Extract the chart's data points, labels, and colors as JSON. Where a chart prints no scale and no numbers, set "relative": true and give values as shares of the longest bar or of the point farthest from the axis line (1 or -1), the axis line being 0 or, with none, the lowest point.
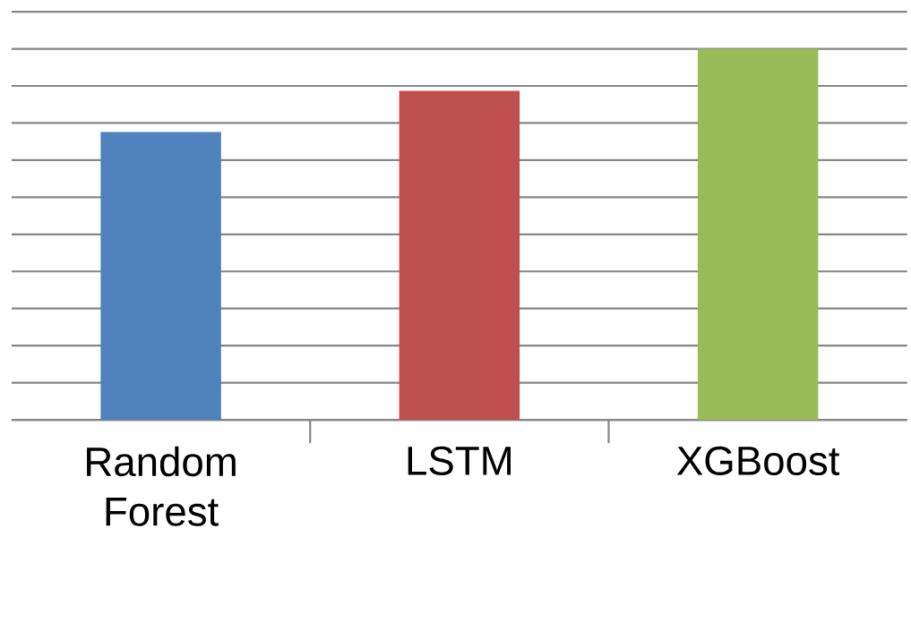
{
  "chart_data": {
    "type": "bar",
    "relative": true,
    "grid": "y",
    "categories": [
      "Random Forest",
      "LSTM",
      "XGBoost"
    ],
    "values": [
      0.776,
      0.887,
      1
    ],
    "colors": [
      "#4f81bd",
      "#c0504d",
      "#9bbb59"
    ]
  }
}
